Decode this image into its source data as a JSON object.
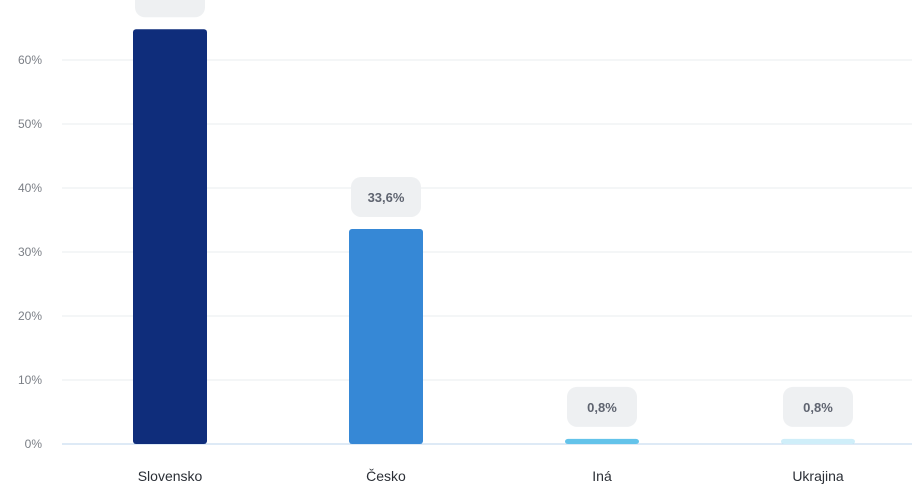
{
  "chart_data": {
    "type": "bar",
    "categories": [
      "Slovensko",
      "Česko",
      "Iná",
      "Ukrajina"
    ],
    "values": [
      64.8,
      33.6,
      0.8,
      0.8
    ],
    "data_labels": [
      "",
      "33,6%",
      "0,8%",
      "0,8%"
    ],
    "colors": [
      "#0f2d7b",
      "#3688d6",
      "#63c3ea",
      "#cfeef9"
    ],
    "yticks": [
      "0%",
      "10%",
      "20%",
      "30%",
      "40%",
      "50%",
      "60%"
    ],
    "ylim": [
      0,
      70
    ],
    "grid": true
  }
}
